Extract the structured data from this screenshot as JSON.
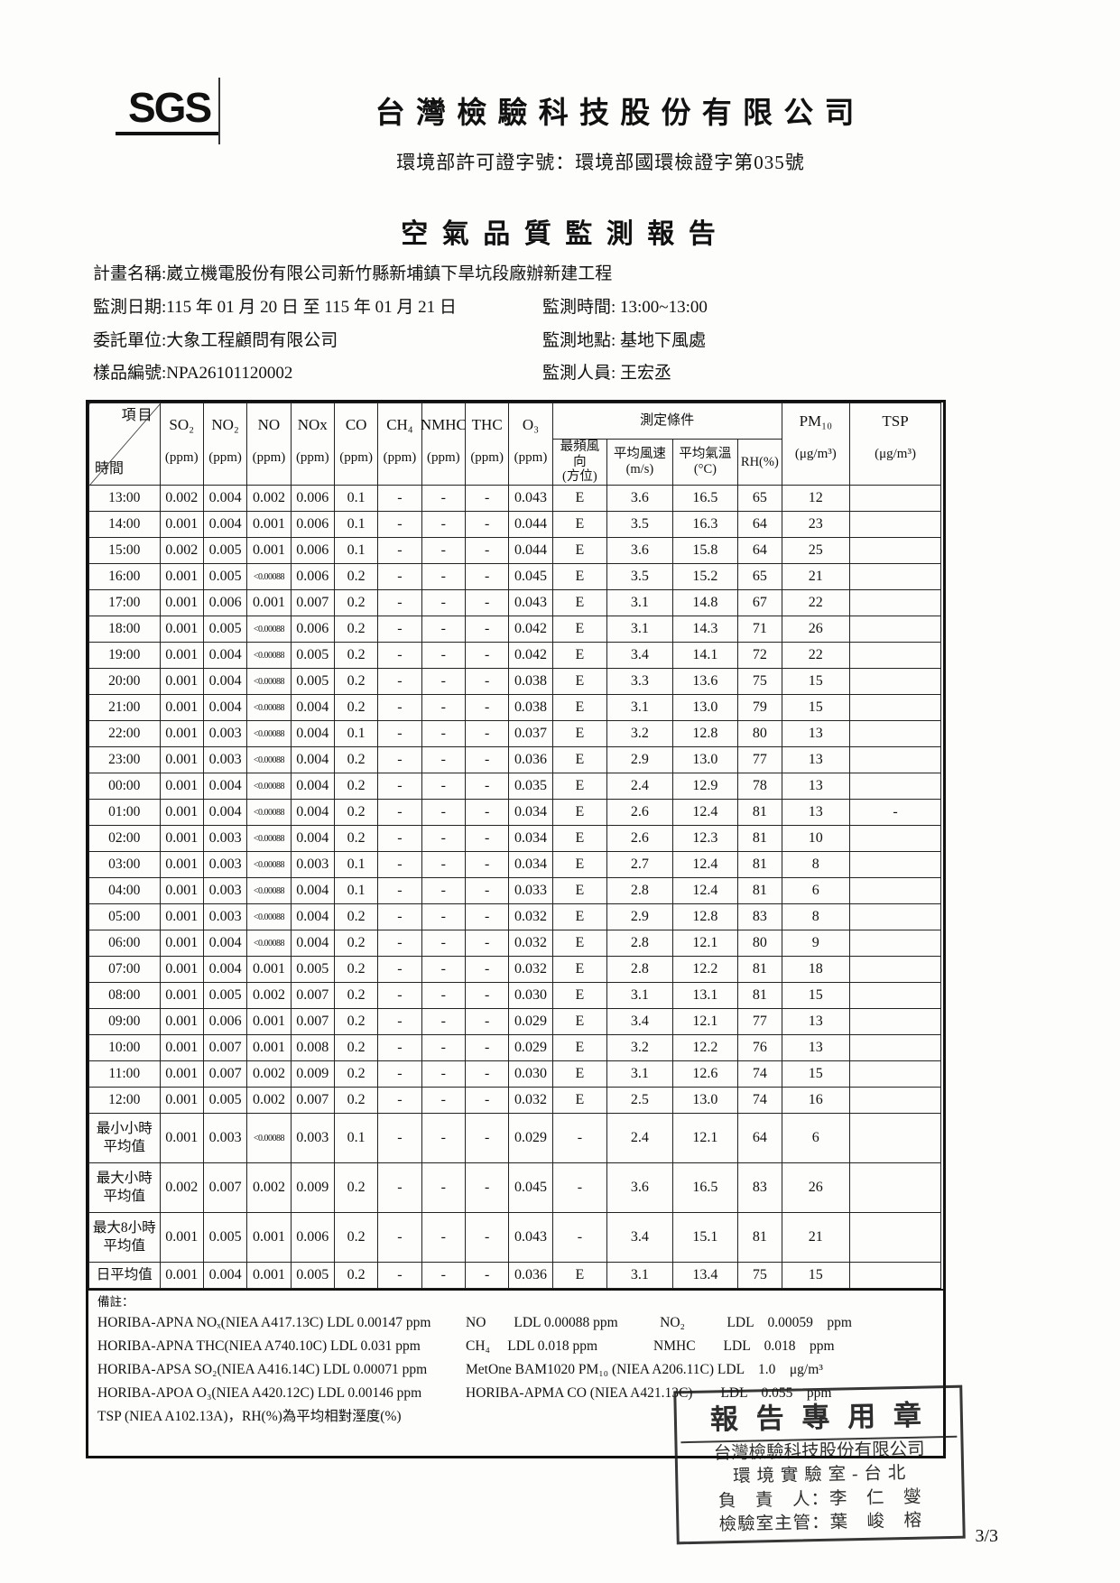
{
  "header": {
    "logo": "SGS",
    "company": "台 灣 檢 驗 科 技 股 份 有 限 公 司",
    "permit": "環境部許可證字號：環境部國環檢證字第035號",
    "title": "空 氣 品 質 監 測 報 告"
  },
  "meta": {
    "project": "計畫名稱:崴立機電股份有限公司新竹縣新埔鎮下旱坑段廠辦新建工程",
    "date": "監測日期:115 年 01 月 20 日 至 115 年 01 月 21 日",
    "time": "監測時間: 13:00~13:00",
    "client": "委託單位:大象工程顧問有限公司",
    "location": "監測地點: 基地下風處",
    "sample_no": "樣品編號:NPA26101120002",
    "personnel": "監測人員: 王宏丞"
  },
  "table": {
    "corner": {
      "top": "項目",
      "bottom": "時間"
    },
    "gas_columns": [
      {
        "label": "SO₂",
        "unit": "(ppm)"
      },
      {
        "label": "NO₂",
        "unit": "(ppm)"
      },
      {
        "label": "NO",
        "unit": "(ppm)"
      },
      {
        "label": "NOx",
        "unit": "(ppm)"
      },
      {
        "label": "CO",
        "unit": "(ppm)"
      },
      {
        "label": "CH₄",
        "unit": "(ppm)"
      },
      {
        "label": "NMHC",
        "unit": "(ppm)"
      },
      {
        "label": "THC",
        "unit": "(ppm)"
      },
      {
        "label": "O₃",
        "unit": "(ppm)"
      }
    ],
    "conditions_header": "測定條件",
    "condition_columns": [
      {
        "text": "最頻風向\n(方位)"
      },
      {
        "text": "平均風速\n(m/s)"
      },
      {
        "text": "平均氣溫\n(°C)"
      },
      {
        "text": "RH(%)"
      }
    ],
    "pm10": {
      "label": "PM₁₀",
      "unit": "(μg/m³)"
    },
    "tsp": {
      "label": "TSP",
      "unit": "(μg/m³)"
    },
    "rows": [
      [
        "13:00",
        "0.002",
        "0.004",
        "0.002",
        "0.006",
        "0.1",
        "-",
        "-",
        "-",
        "0.043",
        "E",
        "3.6",
        "16.5",
        "65",
        "12",
        ""
      ],
      [
        "14:00",
        "0.001",
        "0.004",
        "0.001",
        "0.006",
        "0.1",
        "-",
        "-",
        "-",
        "0.044",
        "E",
        "3.5",
        "16.3",
        "64",
        "23",
        ""
      ],
      [
        "15:00",
        "0.002",
        "0.005",
        "0.001",
        "0.006",
        "0.1",
        "-",
        "-",
        "-",
        "0.044",
        "E",
        "3.6",
        "15.8",
        "64",
        "25",
        ""
      ],
      [
        "16:00",
        "0.001",
        "0.005",
        "<0.00088",
        "0.006",
        "0.2",
        "-",
        "-",
        "-",
        "0.045",
        "E",
        "3.5",
        "15.2",
        "65",
        "21",
        ""
      ],
      [
        "17:00",
        "0.001",
        "0.006",
        "0.001",
        "0.007",
        "0.2",
        "-",
        "-",
        "-",
        "0.043",
        "E",
        "3.1",
        "14.8",
        "67",
        "22",
        ""
      ],
      [
        "18:00",
        "0.001",
        "0.005",
        "<0.00088",
        "0.006",
        "0.2",
        "-",
        "-",
        "-",
        "0.042",
        "E",
        "3.1",
        "14.3",
        "71",
        "26",
        ""
      ],
      [
        "19:00",
        "0.001",
        "0.004",
        "<0.00088",
        "0.005",
        "0.2",
        "-",
        "-",
        "-",
        "0.042",
        "E",
        "3.4",
        "14.1",
        "72",
        "22",
        ""
      ],
      [
        "20:00",
        "0.001",
        "0.004",
        "<0.00088",
        "0.005",
        "0.2",
        "-",
        "-",
        "-",
        "0.038",
        "E",
        "3.3",
        "13.6",
        "75",
        "15",
        ""
      ],
      [
        "21:00",
        "0.001",
        "0.004",
        "<0.00088",
        "0.004",
        "0.2",
        "-",
        "-",
        "-",
        "0.038",
        "E",
        "3.1",
        "13.0",
        "79",
        "15",
        ""
      ],
      [
        "22:00",
        "0.001",
        "0.003",
        "<0.00088",
        "0.004",
        "0.1",
        "-",
        "-",
        "-",
        "0.037",
        "E",
        "3.2",
        "12.8",
        "80",
        "13",
        ""
      ],
      [
        "23:00",
        "0.001",
        "0.003",
        "<0.00088",
        "0.004",
        "0.2",
        "-",
        "-",
        "-",
        "0.036",
        "E",
        "2.9",
        "13.0",
        "77",
        "13",
        ""
      ],
      [
        "00:00",
        "0.001",
        "0.004",
        "<0.00088",
        "0.004",
        "0.2",
        "-",
        "-",
        "-",
        "0.035",
        "E",
        "2.4",
        "12.9",
        "78",
        "13",
        ""
      ],
      [
        "01:00",
        "0.001",
        "0.004",
        "<0.00088",
        "0.004",
        "0.2",
        "-",
        "-",
        "-",
        "0.034",
        "E",
        "2.6",
        "12.4",
        "81",
        "13",
        "-"
      ],
      [
        "02:00",
        "0.001",
        "0.003",
        "<0.00088",
        "0.004",
        "0.2",
        "-",
        "-",
        "-",
        "0.034",
        "E",
        "2.6",
        "12.3",
        "81",
        "10",
        ""
      ],
      [
        "03:00",
        "0.001",
        "0.003",
        "<0.00088",
        "0.003",
        "0.1",
        "-",
        "-",
        "-",
        "0.034",
        "E",
        "2.7",
        "12.4",
        "81",
        "8",
        ""
      ],
      [
        "04:00",
        "0.001",
        "0.003",
        "<0.00088",
        "0.004",
        "0.1",
        "-",
        "-",
        "-",
        "0.033",
        "E",
        "2.8",
        "12.4",
        "81",
        "6",
        ""
      ],
      [
        "05:00",
        "0.001",
        "0.003",
        "<0.00088",
        "0.004",
        "0.2",
        "-",
        "-",
        "-",
        "0.032",
        "E",
        "2.9",
        "12.8",
        "83",
        "8",
        ""
      ],
      [
        "06:00",
        "0.001",
        "0.004",
        "<0.00088",
        "0.004",
        "0.2",
        "-",
        "-",
        "-",
        "0.032",
        "E",
        "2.8",
        "12.1",
        "80",
        "9",
        ""
      ],
      [
        "07:00",
        "0.001",
        "0.004",
        "0.001",
        "0.005",
        "0.2",
        "-",
        "-",
        "-",
        "0.032",
        "E",
        "2.8",
        "12.2",
        "81",
        "18",
        ""
      ],
      [
        "08:00",
        "0.001",
        "0.005",
        "0.002",
        "0.007",
        "0.2",
        "-",
        "-",
        "-",
        "0.030",
        "E",
        "3.1",
        "13.1",
        "81",
        "15",
        ""
      ],
      [
        "09:00",
        "0.001",
        "0.006",
        "0.001",
        "0.007",
        "0.2",
        "-",
        "-",
        "-",
        "0.029",
        "E",
        "3.4",
        "12.1",
        "77",
        "13",
        ""
      ],
      [
        "10:00",
        "0.001",
        "0.007",
        "0.001",
        "0.008",
        "0.2",
        "-",
        "-",
        "-",
        "0.029",
        "E",
        "3.2",
        "12.2",
        "76",
        "13",
        ""
      ],
      [
        "11:00",
        "0.001",
        "0.007",
        "0.002",
        "0.009",
        "0.2",
        "-",
        "-",
        "-",
        "0.030",
        "E",
        "3.1",
        "12.6",
        "74",
        "15",
        ""
      ],
      [
        "12:00",
        "0.001",
        "0.005",
        "0.002",
        "0.007",
        "0.2",
        "-",
        "-",
        "-",
        "0.032",
        "E",
        "2.5",
        "13.0",
        "74",
        "16",
        ""
      ],
      [
        "最小小時\n平均值",
        "0.001",
        "0.003",
        "<0.00088",
        "0.003",
        "0.1",
        "-",
        "-",
        "-",
        "0.029",
        "-",
        "2.4",
        "12.1",
        "64",
        "6",
        ""
      ],
      [
        "最大小時\n平均值",
        "0.002",
        "0.007",
        "0.002",
        "0.009",
        "0.2",
        "-",
        "-",
        "-",
        "0.045",
        "-",
        "3.6",
        "16.5",
        "83",
        "26",
        ""
      ],
      [
        "最大8小時\n平均值",
        "0.001",
        "0.005",
        "0.001",
        "0.006",
        "0.2",
        "-",
        "-",
        "-",
        "0.043",
        "-",
        "3.4",
        "15.1",
        "81",
        "21",
        ""
      ],
      [
        "日平均值",
        "0.001",
        "0.004",
        "0.001",
        "0.005",
        "0.2",
        "-",
        "-",
        "-",
        "0.036",
        "E",
        "3.1",
        "13.4",
        "75",
        "15",
        ""
      ]
    ]
  },
  "footer": {
    "notes_title": "備註：",
    "notes": [
      {
        "left": "HORIBA-APNA NOₓ(NIEA A417.13C) LDL 0.00147 ppm",
        "right": "NO　　LDL  0.00088  ppm　　　NO₂　　　LDL　0.00059　ppm"
      },
      {
        "left": "HORIBA-APNA THC(NIEA A740.10C) LDL  0.031   ppm",
        "right": "CH₄　 LDL  0.018  ppm　　　　NMHC　　LDL　0.018　ppm"
      },
      {
        "left": "HORIBA-APSA SO₂(NIEA A416.14C)  LDL 0.00071  ppm",
        "right": "MetOne  BAM1020 PM₁₀ (NIEA A206.11C)  LDL　1.0　μg/m³"
      },
      {
        "left": "HORIBA-APOA O₃(NIEA A420.12C)   LDL 0.00146  ppm",
        "right": "HORIBA-APMA CO (NIEA A421.13C)　　LDL　0.055　ppm"
      },
      {
        "left": "TSP (NIEA A102.13A)，RH(%)為平均相對溼度(%)",
        "right": ""
      }
    ]
  },
  "stamp": {
    "title": "報 告 專 用 章",
    "line1": "台灣檢驗科技股份有限公司",
    "line2": "環 境 實 驗 室 - 台 北",
    "line3": "負　責　人：李　仁　燮",
    "line4": "檢驗室主管：葉　峻　榕"
  },
  "page": {
    "number": "3/3"
  }
}
